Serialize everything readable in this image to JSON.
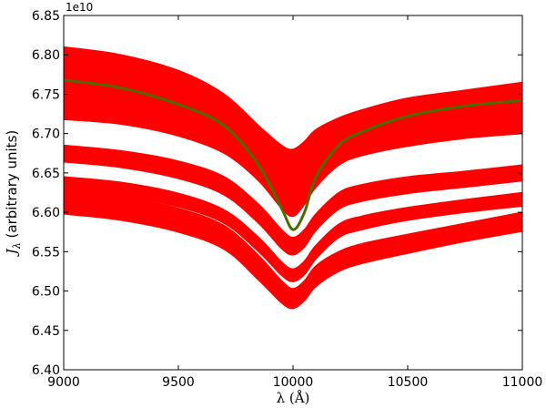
{
  "chart_data": {
    "type": "line",
    "title": "",
    "xlabel": "λ (Å)",
    "ylabel": "J_λ (arbitrary units)",
    "ylabel_main": "J",
    "ylabel_sub": "λ",
    "ylabel_rest": " (arbitrary units)",
    "y_offset_label": "1e10",
    "y_scale": 10000000000.0,
    "xlim": [
      9000,
      11000
    ],
    "ylim": [
      6.4,
      6.85
    ],
    "x_ticks": [
      9000,
      9500,
      10000,
      10500,
      11000
    ],
    "y_ticks": [
      6.4,
      6.45,
      6.5,
      6.55,
      6.6,
      6.65,
      6.7,
      6.75,
      6.8,
      6.85
    ],
    "x_tick_labels": [
      "9000",
      "9500",
      "10000",
      "10500",
      "11000"
    ],
    "y_tick_labels": [
      "6.40",
      "6.45",
      "6.50",
      "6.55",
      "6.60",
      "6.65",
      "6.70",
      "6.75",
      "6.80",
      "6.85"
    ],
    "grid": false,
    "legend": "none",
    "colors": {
      "bands": "#ff0000",
      "mean_line": "#4d6b00",
      "background": "#ffffff"
    },
    "bands": [
      {
        "x": [
          9000,
          9250,
          9500,
          9700,
          9850,
          9950,
          10000,
          10050,
          10100,
          10200,
          10300,
          10500,
          10750,
          11000
        ],
        "upper": [
          6.81,
          6.8,
          6.78,
          6.75,
          6.71,
          6.685,
          6.68,
          6.69,
          6.705,
          6.72,
          6.73,
          6.745,
          6.755,
          6.765
        ],
        "lower": [
          6.718,
          6.712,
          6.697,
          6.675,
          6.64,
          6.605,
          6.595,
          6.61,
          6.632,
          6.66,
          6.672,
          6.684,
          6.694,
          6.7
        ]
      },
      {
        "x": [
          9000,
          9250,
          9500,
          9700,
          9850,
          9950,
          10000,
          10050,
          10100,
          10200,
          10300,
          10500,
          10750,
          11000
        ],
        "upper": [
          6.685,
          6.678,
          6.665,
          6.645,
          6.61,
          6.578,
          6.568,
          6.578,
          6.598,
          6.625,
          6.635,
          6.645,
          6.652,
          6.66
        ],
        "lower": [
          6.664,
          6.657,
          6.643,
          6.622,
          6.586,
          6.554,
          6.546,
          6.556,
          6.577,
          6.604,
          6.614,
          6.624,
          6.632,
          6.64
        ]
      },
      {
        "x": [
          9000,
          9250,
          9500,
          9700,
          9850,
          9950,
          10000,
          10050,
          10100,
          10200,
          10300,
          10500,
          10750,
          11000
        ],
        "upper": [
          6.645,
          6.638,
          6.624,
          6.603,
          6.568,
          6.537,
          6.528,
          6.538,
          6.558,
          6.585,
          6.595,
          6.606,
          6.616,
          6.625
        ],
        "lower": [
          6.628,
          6.621,
          6.607,
          6.586,
          6.55,
          6.52,
          6.512,
          6.521,
          6.541,
          6.568,
          6.578,
          6.59,
          6.6,
          6.608
        ]
      },
      {
        "x": [
          9000,
          9250,
          9500,
          9700,
          9850,
          9950,
          10000,
          10050,
          10100,
          10200,
          10300,
          10500,
          10750,
          11000
        ],
        "upper": [
          6.628,
          6.62,
          6.605,
          6.583,
          6.545,
          6.513,
          6.503,
          6.513,
          6.532,
          6.55,
          6.56,
          6.572,
          6.586,
          6.6
        ],
        "lower": [
          6.598,
          6.59,
          6.575,
          6.553,
          6.514,
          6.485,
          6.478,
          6.488,
          6.506,
          6.525,
          6.535,
          6.548,
          6.563,
          6.576
        ]
      }
    ],
    "series": [
      {
        "x": [
          9000,
          9250,
          9500,
          9700,
          9850,
          9950,
          10000,
          10050,
          10100,
          10200,
          10300,
          10500,
          10750,
          11000
        ],
        "values": [
          6.768,
          6.758,
          6.737,
          6.71,
          6.66,
          6.605,
          6.578,
          6.6,
          6.645,
          6.685,
          6.702,
          6.722,
          6.735,
          6.742
        ]
      }
    ]
  }
}
